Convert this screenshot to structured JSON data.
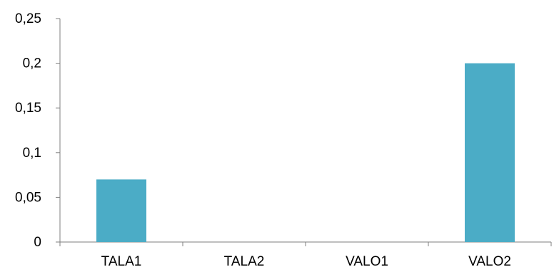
{
  "chart_data": {
    "type": "bar",
    "categories": [
      "TALA1",
      "TALA2",
      "VALO1",
      "VALO2"
    ],
    "values": [
      0.07,
      0,
      0,
      0.2
    ],
    "y_tick_labels": [
      "0",
      "0,05",
      "0,1",
      "0,15",
      "0,2",
      "0,25"
    ],
    "y_ticks": [
      0,
      0.05,
      0.1,
      0.15,
      0.2,
      0.25
    ],
    "ylim": [
      0,
      0.25
    ],
    "title": "",
    "xlabel": "",
    "ylabel": "",
    "grid": false,
    "legend": "none",
    "bar_color": "#4BACC6",
    "axis_color": "#7F7F7F"
  }
}
